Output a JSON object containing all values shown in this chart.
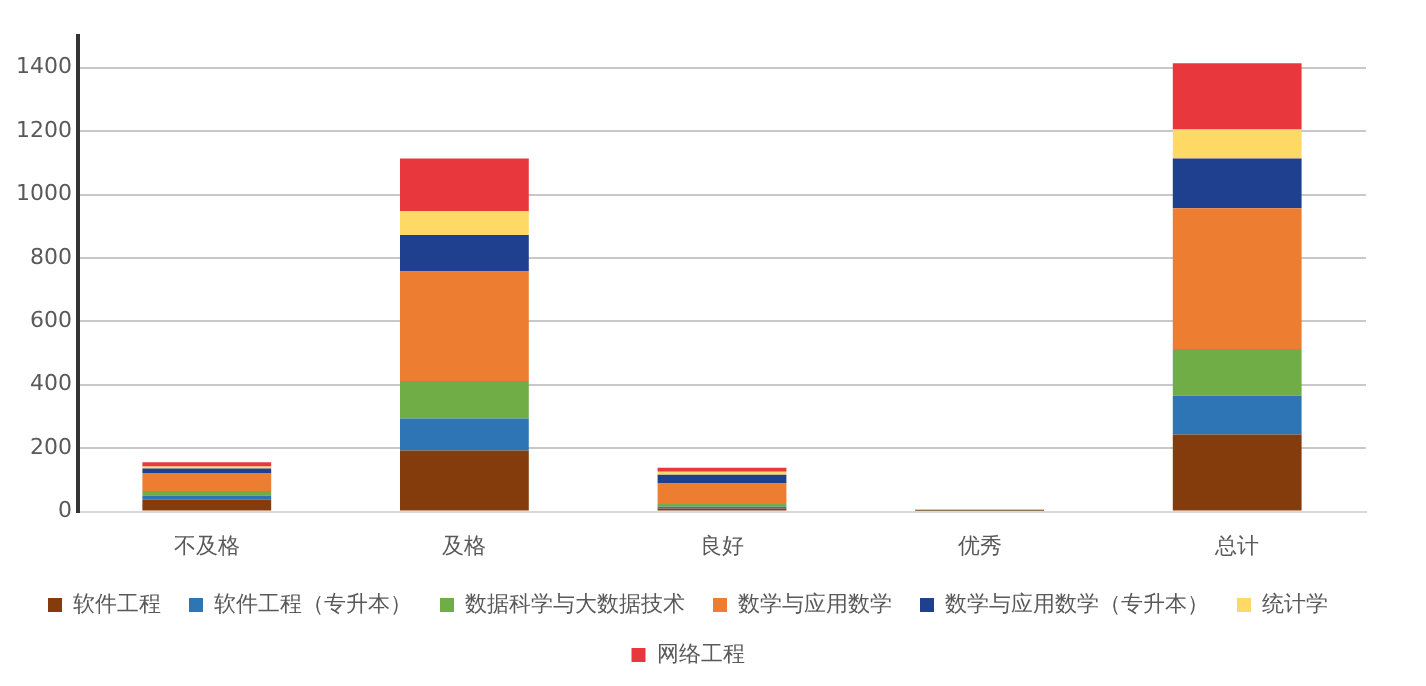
{
  "chart_data": {
    "type": "bar",
    "stacked": true,
    "categories": [
      "不及格",
      "及格",
      "良好",
      "优秀",
      "总计"
    ],
    "series": [
      {
        "name": "软件工程",
        "color": "#843c0c",
        "values": [
          37,
          193,
          10,
          2,
          243
        ]
      },
      {
        "name": "软件工程（专升本）",
        "color": "#2e75b6",
        "values": [
          14,
          101,
          5,
          1,
          122
        ]
      },
      {
        "name": "数据科学与大数据技术",
        "color": "#70ad47",
        "values": [
          14,
          118,
          9,
          1,
          148
        ]
      },
      {
        "name": "数学与应用数学",
        "color": "#ed7d31",
        "values": [
          57,
          345,
          65,
          2,
          444
        ]
      },
      {
        "name": "数学与应用数学（专升本）",
        "color": "#1f3f8f",
        "values": [
          14,
          115,
          27,
          0,
          157
        ]
      },
      {
        "name": "统计学",
        "color": "#ffd966",
        "values": [
          6,
          75,
          10,
          0,
          91
        ]
      },
      {
        "name": "网络工程",
        "color": "#e8383d",
        "values": [
          14,
          167,
          12,
          1,
          209
        ]
      }
    ],
    "ylim": [
      0,
      1500
    ],
    "yticks": [
      0,
      200,
      400,
      600,
      800,
      1000,
      1200,
      1400
    ],
    "grid": "y",
    "legend": "bottom"
  }
}
